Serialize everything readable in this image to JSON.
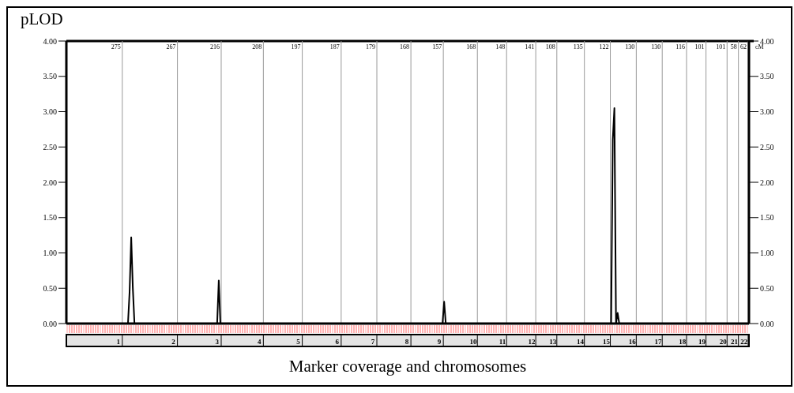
{
  "chart_data": {
    "type": "line",
    "ylabel": "pLOD",
    "xlabel": "Marker coverage and chromosomes",
    "categories": [
      null,
      null,
      null,
      null,
      null,
      null,
      null,
      null,
      null,
      null,
      null,
      null,
      null,
      null,
      null,
      null,
      null,
      null,
      null,
      null,
      null,
      null,
      null,
      null,
      null,
      null,
      null,
      null,
      null,
      null,
      null,
      null,
      "1",
      null,
      null,
      null,
      null,
      null,
      null,
      null,
      null,
      null,
      null,
      null,
      null,
      null,
      null,
      null,
      null,
      null,
      null,
      null,
      null,
      null,
      null,
      null,
      null,
      null,
      null,
      null,
      null,
      null,
      null,
      null,
      null,
      null,
      "2",
      null,
      null,
      null,
      null,
      null,
      null,
      null,
      null,
      null,
      null,
      null,
      null,
      null,
      null,
      null,
      null,
      null,
      null,
      null,
      null,
      null,
      null,
      null,
      null,
      null,
      null,
      "3",
      null,
      null,
      null,
      null,
      null,
      null,
      null,
      null,
      null,
      null,
      null,
      null,
      null,
      null,
      null,
      null,
      null,
      null,
      null,
      null,
      null,
      null,
      null,
      null,
      null,
      "4",
      null,
      null,
      null,
      null,
      null,
      null,
      null,
      null,
      null,
      null,
      null,
      null,
      null,
      null,
      null,
      null,
      null,
      null,
      null,
      null,
      null,
      null,
      null,
      "5",
      null,
      null,
      null,
      null,
      null,
      null,
      null,
      null,
      null,
      null,
      null,
      null,
      null,
      null,
      null,
      null,
      null,
      null,
      null,
      null,
      null,
      null,
      null,
      "6",
      null,
      null,
      null,
      null,
      null,
      null,
      null,
      null,
      null,
      null,
      null,
      null,
      null,
      null,
      null,
      null,
      null,
      null,
      null,
      null,
      null,
      "7",
      null,
      null,
      null,
      null,
      null,
      null,
      null,
      null,
      null,
      null,
      null,
      null,
      null,
      null,
      null,
      null,
      null,
      null,
      null,
      null,
      "8",
      null,
      null,
      null,
      null,
      null,
      null,
      null,
      null,
      null,
      null,
      null,
      null,
      null,
      null,
      null,
      null,
      null,
      null,
      null,
      "9",
      null,
      null,
      null,
      null,
      null,
      null,
      null,
      null,
      null,
      null,
      null,
      null,
      null,
      null,
      null,
      null,
      null,
      null,
      null,
      null,
      "10",
      null,
      null,
      null,
      null,
      null,
      null,
      null,
      null,
      null,
      null,
      null,
      null,
      null,
      null,
      null,
      null,
      null,
      "11",
      null,
      null,
      null,
      null,
      null,
      null,
      null,
      null,
      null,
      null,
      null,
      null,
      null,
      null,
      null,
      null,
      null,
      "12",
      null,
      null,
      null,
      null,
      null,
      null,
      null,
      null,
      null,
      null,
      null,
      null,
      "13",
      null,
      null,
      null,
      null,
      null,
      null,
      null,
      null,
      null,
      null,
      null,
      null,
      null,
      null,
      null,
      null,
      "14",
      null,
      null,
      null,
      null,
      null,
      null,
      null,
      null,
      null,
      null,
      null,
      null,
      null,
      null,
      null,
      "15",
      null,
      null,
      null,
      null,
      null,
      null,
      null,
      null,
      null,
      null,
      null,
      null,
      null,
      null,
      null,
      "16",
      null,
      null,
      null,
      null,
      null,
      null,
      null,
      null,
      null,
      null,
      null,
      null,
      null,
      null,
      null,
      "17",
      null,
      null,
      null,
      null,
      null,
      null,
      null,
      null,
      null,
      null,
      null,
      null,
      null,
      null,
      "18",
      null,
      null,
      null,
      null,
      null,
      null,
      null,
      null,
      null,
      null,
      null,
      "19",
      null,
      null,
      null,
      null,
      null,
      null,
      null,
      null,
      null,
      null,
      null,
      null,
      "20",
      null,
      null,
      null,
      null,
      null,
      null,
      "21",
      null,
      null,
      null,
      null,
      null,
      "22",
      null,
      null,
      null
    ],
    "series": [
      {
        "color": "#000000",
        "values": [
          0,
          0,
          0,
          0,
          0,
          0,
          0,
          0,
          0,
          0,
          0,
          0,
          0,
          0,
          0,
          0,
          0,
          0,
          0,
          0,
          0,
          0,
          0,
          0,
          0,
          0,
          0,
          0,
          0,
          0,
          0,
          0,
          0,
          0,
          0,
          0,
          0,
          0,
          0,
          0.45,
          1.22,
          0.5,
          0,
          0,
          0,
          0,
          0,
          0,
          0,
          0,
          0,
          0,
          0,
          0,
          0,
          0,
          0,
          0,
          0,
          0,
          0,
          0,
          0,
          0,
          0,
          0,
          0,
          0,
          0,
          0,
          0,
          0,
          0,
          0,
          0,
          0,
          0,
          0,
          0,
          0,
          0,
          0,
          0,
          0,
          0,
          0,
          0,
          0,
          0,
          0,
          0,
          0,
          0,
          0,
          0.61,
          0,
          0,
          0,
          0,
          0,
          0,
          0,
          0,
          0,
          0,
          0,
          0,
          0,
          0,
          0,
          0,
          0,
          0,
          0,
          0,
          0,
          0,
          0,
          0,
          0,
          0,
          0,
          0,
          0,
          0,
          0,
          0,
          0,
          0,
          0,
          0,
          0,
          0,
          0,
          0,
          0,
          0,
          0,
          0,
          0,
          0,
          0,
          0,
          0,
          0,
          0,
          0,
          0,
          0,
          0,
          0,
          0,
          0,
          0,
          0,
          0,
          0,
          0,
          0,
          0,
          0,
          0,
          0,
          0,
          0,
          0,
          0,
          0,
          0,
          0,
          0,
          0,
          0,
          0,
          0,
          0,
          0,
          0,
          0,
          0,
          0,
          0,
          0,
          0,
          0,
          0,
          0,
          0,
          0,
          0,
          0,
          0,
          0,
          0,
          0,
          0,
          0,
          0,
          0,
          0,
          0,
          0,
          0,
          0,
          0,
          0,
          0,
          0,
          0,
          0,
          0,
          0,
          0,
          0,
          0,
          0,
          0,
          0,
          0,
          0,
          0,
          0,
          0,
          0,
          0,
          0,
          0,
          0,
          0,
          0,
          0,
          0,
          0,
          0.31,
          0,
          0,
          0,
          0,
          0,
          0,
          0,
          0,
          0,
          0,
          0,
          0,
          0,
          0,
          0,
          0,
          0,
          0,
          0,
          0,
          0,
          0,
          0,
          0,
          0,
          0,
          0,
          0,
          0,
          0,
          0,
          0,
          0,
          0,
          0,
          0,
          0,
          0,
          0,
          0,
          0,
          0,
          0,
          0,
          0,
          0,
          0,
          0,
          0,
          0,
          0,
          0,
          0,
          0,
          0,
          0,
          0,
          0,
          0,
          0,
          0,
          0,
          0,
          0,
          0,
          0,
          0,
          0,
          0,
          0,
          0,
          0,
          0,
          0,
          0,
          0,
          0,
          0,
          0,
          0,
          0,
          0,
          0,
          0,
          0,
          0,
          0,
          0,
          0,
          0,
          0,
          0,
          0,
          0,
          0,
          0,
          0,
          0,
          0,
          0,
          0,
          0,
          0,
          2.6,
          3.05,
          0,
          0.15,
          0,
          0,
          0,
          0,
          0,
          0,
          0,
          0,
          0,
          0,
          0,
          0,
          0,
          0,
          0,
          0,
          0,
          0,
          0,
          0,
          0,
          0,
          0,
          0,
          0,
          0,
          0,
          0,
          0,
          0,
          0,
          0,
          0,
          0,
          0,
          0,
          0,
          0,
          0,
          0,
          0,
          0,
          0,
          0,
          0,
          0,
          0,
          0,
          0,
          0,
          0,
          0,
          0,
          0,
          0,
          0,
          0,
          0,
          0,
          0,
          0,
          0,
          0,
          0,
          0,
          0,
          0,
          0,
          0,
          0,
          0,
          0,
          0,
          0,
          0,
          0,
          0,
          0,
          0,
          0,
          0
        ]
      }
    ],
    "annotations": [
      "275",
      "267",
      "216",
      "208",
      "197",
      "187",
      "179",
      "168",
      "157",
      "168",
      "148",
      "141",
      "108",
      "135",
      "122",
      "130",
      "130",
      "116",
      "101",
      "101",
      "58",
      "62",
      "cM"
    ],
    "ylim": [
      0,
      4
    ],
    "yticks": [
      {
        "value": 0,
        "label": "0.00"
      },
      {
        "value": 0.5,
        "label": "0.50"
      },
      {
        "value": 1,
        "label": "1.00"
      },
      {
        "value": 1.5,
        "label": "1.50"
      },
      {
        "value": 2,
        "label": "2.00"
      },
      {
        "value": 2.5,
        "label": "2.50"
      },
      {
        "value": 3,
        "label": "3.00"
      },
      {
        "value": 3.5,
        "label": "3.50"
      },
      {
        "value": 4,
        "label": "4.00"
      }
    ],
    "y2lim": [
      0,
      4
    ],
    "y2ticks": [
      {
        "value": 0,
        "label": "0.00"
      },
      {
        "value": 0.5,
        "label": "0.50"
      },
      {
        "value": 1,
        "label": "1.00"
      },
      {
        "value": 1.5,
        "label": "1.50"
      },
      {
        "value": 2,
        "label": "2.00"
      },
      {
        "value": 2.5,
        "label": "2.50"
      },
      {
        "value": 3,
        "label": "3.00"
      },
      {
        "value": 3.5,
        "label": "3.50"
      },
      {
        "value": 4,
        "label": "4.00"
      }
    ],
    "grid": true,
    "marker": "none",
    "line_style": "solid"
  }
}
